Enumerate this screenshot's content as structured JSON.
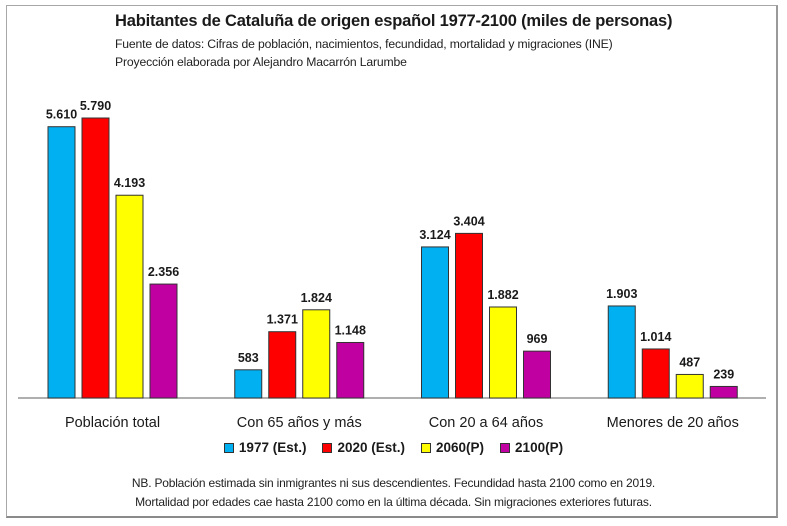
{
  "chart_data": {
    "type": "bar",
    "title": "Habitantes de Cataluña de origen español 1977-2100 (miles de personas)",
    "subtitles": [
      "Fuente de datos: Cifras de población, nacimientos, fecundidad, mortalidad y migraciones (INE)",
      "Proyección elaborada por Alejandro Macarrón Larumbe"
    ],
    "categories": [
      "Población total",
      "Con 65 años y más",
      "Con 20 a 64 años",
      "Menores de 20 años"
    ],
    "series": [
      {
        "name": "1977 (Est.)",
        "color": "#00b0f0",
        "values": [
          5610,
          583,
          3124,
          1903
        ],
        "labels": [
          "5.610",
          "583",
          "3.124",
          "1.903"
        ]
      },
      {
        "name": "2020 (Est.)",
        "color": "#ff0000",
        "values": [
          5790,
          1371,
          3404,
          1014
        ],
        "labels": [
          "5.790",
          "1.371",
          "3.404",
          "1.014"
        ]
      },
      {
        "name": "2060(P)",
        "color": "#ffff00",
        "values": [
          4193,
          1824,
          1882,
          487
        ],
        "labels": [
          "4.193",
          "1.824",
          "1.882",
          "487"
        ]
      },
      {
        "name": "2100(P)",
        "color": "#c000a0",
        "values": [
          2356,
          1148,
          969,
          239
        ],
        "labels": [
          "2.356",
          "1.148",
          "969",
          "239"
        ]
      }
    ],
    "xlabel": "",
    "ylabel": "",
    "ylim": [
      0,
      5790
    ],
    "grid": false,
    "legend_position": "bottom",
    "notes": [
      "NB. Población estimada sin inmigrantes ni sus descendientes. Fecundidad hasta 2100 como en 2019.",
      "Mortalidad por edades cae hasta 2100  como en la última década. Sin migraciones exteriores futuras."
    ]
  }
}
